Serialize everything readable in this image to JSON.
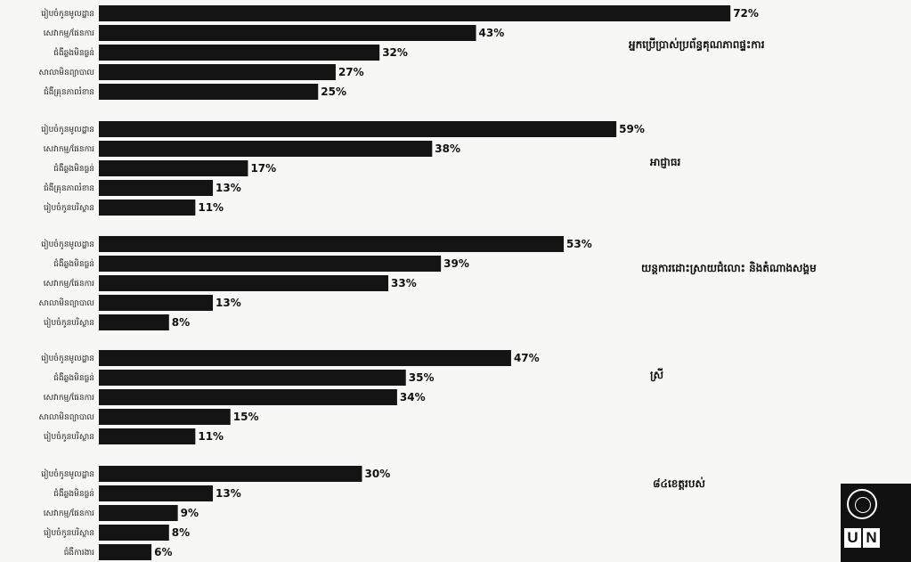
{
  "chart_data": [
    {
      "type": "bar",
      "orientation": "horizontal",
      "title": "អ្នកប្រើប្រាស់ប្រព័ន្ធគុណភាពផ្ទះការ",
      "categories": [
        "រៀបចំកូនមូលដ្ឋាន",
        "សេវាកម្ម/ផែនការ",
        "ជំងឺឆ្លងមិនធ្ងន់",
        "សាលាមិនព្យាបាល",
        "ជំងឺគ្រុនភាពរំខាន"
      ],
      "values": [
        72,
        43,
        32,
        27,
        25
      ],
      "value_labels": [
        "72%",
        "43%",
        "32%",
        "27%",
        "25%"
      ]
    },
    {
      "type": "bar",
      "orientation": "horizontal",
      "title": "អាជ្ញាធរ",
      "categories": [
        "រៀបចំកូនមូលដ្ឋាន",
        "សេវាកម្ម/ផែនការ",
        "ជំងឺឆ្លងមិនធ្ងន់",
        "ជំងឺគ្រុនភាពរំខាន",
        "រៀបចំកូនបរិស្ថាន"
      ],
      "values": [
        59,
        38,
        17,
        13,
        11
      ],
      "value_labels": [
        "59%",
        "38%",
        "17%",
        "13%",
        "11%"
      ]
    },
    {
      "type": "bar",
      "orientation": "horizontal",
      "title": "យន្តការដោះស្រាយជំលោះ និងតំណាងសង្គម",
      "categories": [
        "រៀបចំកូនមូលដ្ឋាន",
        "ជំងឺឆ្លងមិនធ្ងន់",
        "សេវាកម្ម/ផែនការ",
        "សាលាមិនព្យាបាល",
        "រៀបចំកូនបរិស្ថាន"
      ],
      "values": [
        53,
        39,
        33,
        13,
        8
      ],
      "value_labels": [
        "53%",
        "39%",
        "33%",
        "13%",
        "8%"
      ]
    },
    {
      "type": "bar",
      "orientation": "horizontal",
      "title": "ស្រី",
      "categories": [
        "រៀបចំកូនមូលដ្ឋាន",
        "ជំងឺឆ្លងមិនធ្ងន់",
        "សេវាកម្ម/ផែនការ",
        "សាលាមិនព្យាបាល",
        "រៀបចំកូនបរិស្ថាន"
      ],
      "values": [
        47,
        35,
        34,
        15,
        11
      ],
      "value_labels": [
        "47%",
        "35%",
        "34%",
        "15%",
        "11%"
      ]
    },
    {
      "type": "bar",
      "orientation": "horizontal",
      "title": "៨៤ខេត្តរបស់",
      "categories": [
        "រៀបចំកូនមូលដ្ឋាន",
        "ជំងឺឆ្លងមិនធ្ងន់",
        "សេវាកម្ម/ផែនការ",
        "រៀបចំកូនបរិស្ថាន",
        "ជំងឺការងារ"
      ],
      "values": [
        30,
        13,
        9,
        8,
        6
      ],
      "value_labels": [
        "30%",
        "13%",
        "9%",
        "8%",
        "6%"
      ]
    }
  ],
  "logo": {
    "letters": [
      "U",
      "N"
    ]
  },
  "colors": {
    "bar": "#141414",
    "background": "#f7f7f5"
  }
}
